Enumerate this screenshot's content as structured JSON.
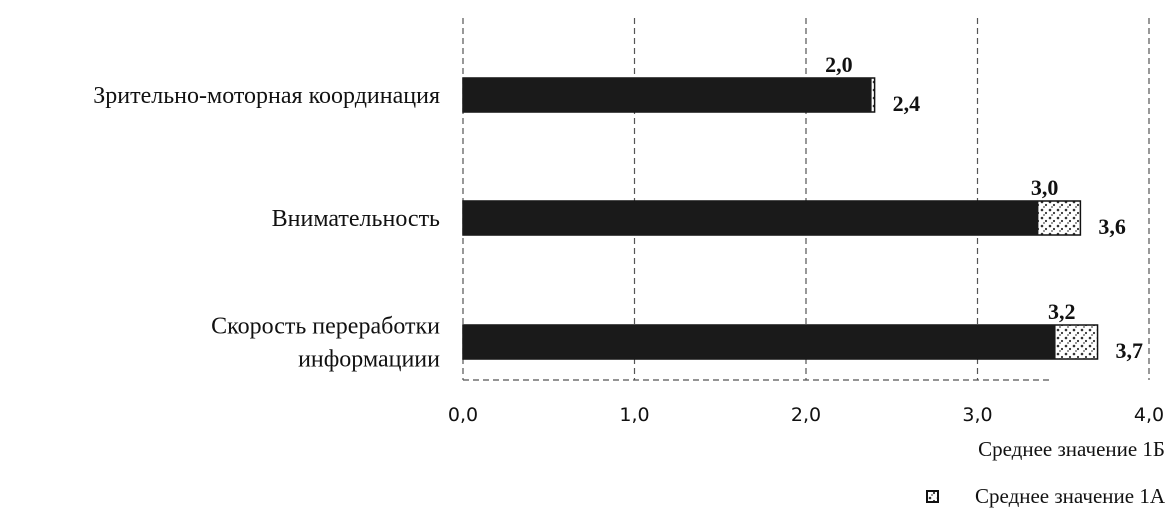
{
  "chart_data": {
    "type": "bar",
    "orientation": "horizontal",
    "title": "",
    "categories": [
      "Зрительно-моторная координация",
      "Внимательность",
      "Скорость переработки информациии"
    ],
    "series": [
      {
        "name": "Среднее значение 1Б",
        "values": [
          2.4,
          3.6,
          3.7
        ],
        "value_labels": [
          "2,4",
          "3,6",
          "3,7"
        ],
        "color": "#1a1a1a"
      },
      {
        "name": "Среднее значение 1А",
        "values": [
          2.0,
          3.0,
          3.2
        ],
        "value_labels": [
          "2,0",
          "3,0",
          "3,2"
        ],
        "color": "#2a2a2a"
      }
    ],
    "xlim": [
      0,
      4
    ],
    "xticks": [
      "0,0",
      "1,0",
      "2,0",
      "3,0",
      "4,0"
    ],
    "xlabel": "",
    "ylabel": "",
    "grid": true,
    "legend": [
      "Среднее значение 1Б",
      "Среднее значение 1А"
    ],
    "legend_position": "bottom-right"
  }
}
